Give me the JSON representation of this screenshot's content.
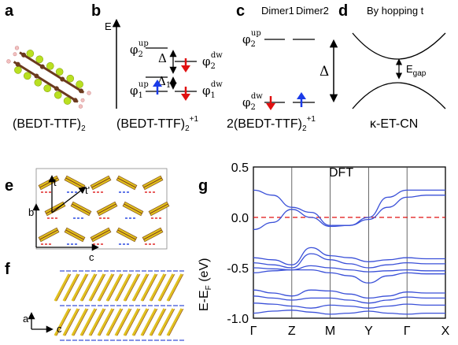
{
  "panels": {
    "a": {
      "label": "a",
      "caption_main": "(BEDT-TTF)",
      "caption_sub": "2"
    },
    "b": {
      "label": "b",
      "axis_label": "E",
      "levels": {
        "phi2_up": {
          "base": "φ",
          "sub": "2",
          "sup": "up"
        },
        "phi2_dw": {
          "base": "φ",
          "sub": "2",
          "sup": "dw"
        },
        "phi1_up": {
          "base": "φ",
          "sub": "1",
          "sup": "up"
        },
        "phi1_dw": {
          "base": "φ",
          "sub": "1",
          "sup": "dw"
        }
      },
      "delta": "Δ",
      "delta1": "Δ",
      "delta1_sub": "1",
      "caption_main": "(BEDT-TTF)",
      "caption_sub": "2",
      "caption_sup": "+1"
    },
    "c": {
      "label": "c",
      "headers": [
        "Dimer1",
        "Dimer2"
      ],
      "phi2_up": {
        "base": "φ",
        "sub": "2",
        "sup": "up"
      },
      "phi2_dw": {
        "base": "φ",
        "sub": "2",
        "sup": "dw"
      },
      "delta": "Δ",
      "caption_main": "2(BEDT-TTF)",
      "caption_sub": "2",
      "caption_sup": "+1"
    },
    "d": {
      "label": "d",
      "header": "By hopping t",
      "egap_main": "E",
      "egap_sub": "gap",
      "caption": "κ-ET-CN"
    },
    "e": {
      "label": "e",
      "axes": {
        "t": "t",
        "t_prime": "t'",
        "b": "b",
        "c": "c"
      }
    },
    "f": {
      "label": "f",
      "axes": {
        "a": "a",
        "c": "c"
      }
    },
    "g": {
      "label": "g"
    }
  },
  "colors": {
    "band": "#3a50d8",
    "fermi": "#e01010",
    "spin_up": "#1a3be8",
    "spin_dw": "#e01010"
  },
  "chart_data": {
    "type": "line",
    "title": "DFT",
    "ylabel_main": "E-E",
    "ylabel_sub": "F",
    "ylabel_unit": " (eV)",
    "ylim": [
      -1.0,
      0.5
    ],
    "yticks": [
      "0.5",
      "0.0",
      "-0.5",
      "-1.0"
    ],
    "ytick_values": [
      0.5,
      0.0,
      -0.5,
      -1.0
    ],
    "kpoints": [
      "Γ",
      "Z",
      "M",
      "Y",
      "Γ",
      "X"
    ],
    "kpoint_positions": [
      0,
      1,
      2,
      3,
      4,
      5
    ],
    "fermi_level": 0.0,
    "x": [
      0.0,
      0.5,
      1.0,
      1.5,
      2.0,
      2.5,
      3.0,
      3.5,
      4.0,
      4.5,
      5.0
    ],
    "series": [
      {
        "values": [
          0.27,
          0.22,
          0.1,
          0.05,
          -0.08,
          -0.08,
          0.0,
          0.2,
          0.27,
          0.27,
          0.27
        ]
      },
      {
        "values": [
          -0.12,
          -0.05,
          0.08,
          0.0,
          -0.09,
          -0.08,
          -0.02,
          0.1,
          0.2,
          0.22,
          0.22
        ]
      },
      {
        "values": [
          -0.4,
          -0.42,
          -0.47,
          -0.3,
          -0.38,
          -0.4,
          -0.44,
          -0.42,
          -0.4,
          -0.41,
          -0.41
        ]
      },
      {
        "values": [
          -0.45,
          -0.47,
          -0.5,
          -0.36,
          -0.42,
          -0.46,
          -0.5,
          -0.47,
          -0.45,
          -0.46,
          -0.46
        ]
      },
      {
        "values": [
          -0.5,
          -0.51,
          -0.52,
          -0.48,
          -0.5,
          -0.52,
          -0.54,
          -0.53,
          -0.52,
          -0.53,
          -0.53
        ]
      },
      {
        "values": [
          -0.55,
          -0.53,
          -0.52,
          -0.52,
          -0.55,
          -0.58,
          -0.65,
          -0.58,
          -0.55,
          -0.56,
          -0.56
        ]
      },
      {
        "values": [
          -0.72,
          -0.75,
          -0.78,
          -0.72,
          -0.73,
          -0.76,
          -0.8,
          -0.78,
          -0.74,
          -0.75,
          -0.75
        ]
      },
      {
        "values": [
          -0.78,
          -0.8,
          -0.82,
          -0.8,
          -0.8,
          -0.82,
          -0.85,
          -0.82,
          -0.79,
          -0.8,
          -0.8
        ]
      },
      {
        "values": [
          -0.85,
          -0.86,
          -0.88,
          -0.9,
          -0.87,
          -0.88,
          -0.9,
          -0.88,
          -0.86,
          -0.87,
          -0.87
        ]
      },
      {
        "values": [
          -0.95,
          -0.93,
          -0.92,
          -0.94,
          -0.96,
          -0.95,
          -0.93,
          -0.95,
          -0.96,
          -0.95,
          -0.95
        ]
      }
    ]
  }
}
